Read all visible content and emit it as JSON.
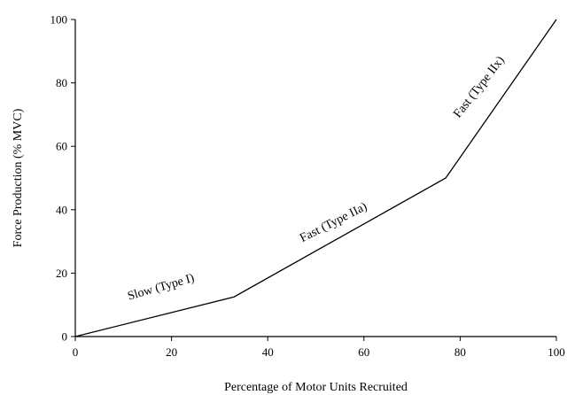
{
  "chart_data": {
    "type": "line",
    "xlabel": "Percentage of Motor Units Recruited",
    "ylabel": "Force Production (% MVC)",
    "xlim": [
      0,
      100
    ],
    "ylim": [
      0,
      100
    ],
    "xticks": [
      0,
      20,
      40,
      60,
      80,
      100
    ],
    "yticks": [
      0,
      20,
      40,
      60,
      80,
      100
    ],
    "grid": false,
    "legend": "none",
    "series": [
      {
        "x": [
          0,
          33,
          77,
          100
        ],
        "y": [
          0,
          12.5,
          50,
          100
        ],
        "color": "#000000"
      }
    ],
    "annotations": [
      {
        "text": "Slow (Type I)",
        "x": 18,
        "y": 14.5,
        "rotation": -16
      },
      {
        "text": "Fast (Type IIa)",
        "x": 54,
        "y": 35,
        "rotation": -27
      },
      {
        "text": "Fast (Type IIx)",
        "x": 84.5,
        "y": 78,
        "rotation": -52
      }
    ]
  }
}
